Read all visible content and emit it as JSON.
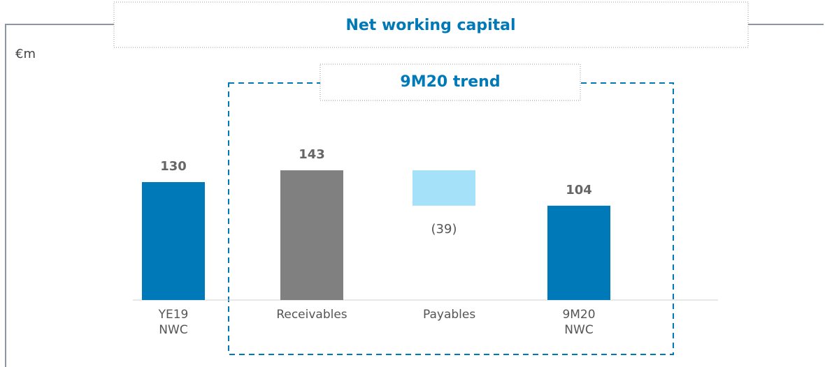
{
  "chart_data": {
    "type": "waterfall",
    "title": "Net working capital",
    "subtitle": "9M20 trend",
    "unit_label": "€m",
    "categories": [
      "YE19 NWC",
      "Receivables",
      "Payables",
      "9M20 NWC"
    ],
    "values": [
      130,
      143,
      -39,
      104
    ],
    "value_labels": [
      "130",
      "143",
      "(39)",
      "104"
    ],
    "measures": [
      "total",
      "total",
      "relative",
      "total"
    ],
    "colors": [
      "#0079b8",
      "#808080",
      "#a6e1fa",
      "#0079b8"
    ]
  }
}
